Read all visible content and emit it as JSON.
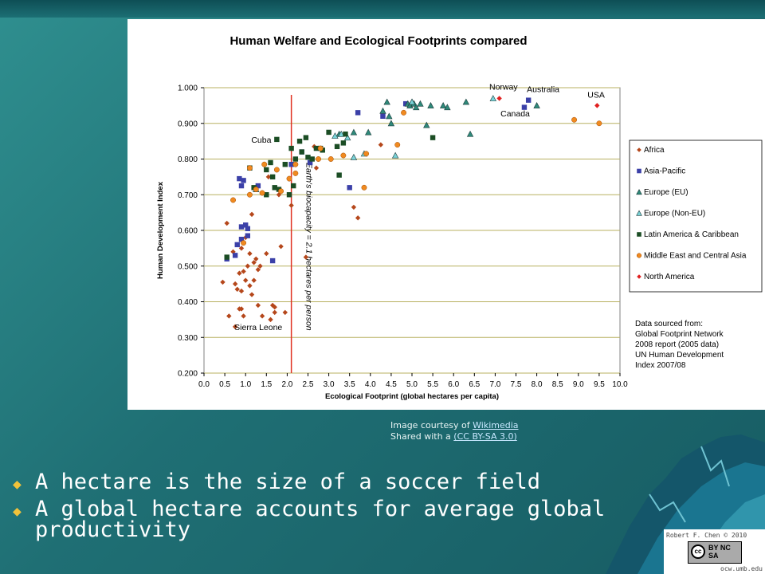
{
  "slide": {
    "bullets": [
      "A hectare is the size of a soccer field",
      "A global hectare accounts for average global productivity"
    ],
    "credit": {
      "prefix1": "Image courtesy of ",
      "link1": "Wikimedia",
      "prefix2": "Shared with a ",
      "link2": "(CC BY-SA 3.0)"
    },
    "license": {
      "author": "Robert F. Chen © 2010",
      "site": "ocw.umb.edu",
      "badge_cc": "cc",
      "badge_terms": "BY NC SA"
    },
    "colors": {
      "background": "#1f6f74",
      "bullet_marker": "#f2c23a",
      "bullet_text": "#ffffff"
    }
  },
  "chart_data": {
    "type": "scatter",
    "title": "Human Welfare and Ecological Footprints compared",
    "xlabel": "Ecological Footprint (global hectares per capita)",
    "ylabel": "Human Development Index",
    "xlim": [
      0,
      10
    ],
    "ylim": [
      0.2,
      1.0
    ],
    "xticks": [
      "0.0",
      "0.5",
      "1.0",
      "1.5",
      "2.0",
      "2.5",
      "3.0",
      "3.5",
      "4.0",
      "4.5",
      "5.0",
      "5.5",
      "6.0",
      "6.5",
      "7.0",
      "7.5",
      "8.0",
      "8.5",
      "9.0",
      "9.5",
      "10.0"
    ],
    "yticks": [
      "0.200",
      "0.300",
      "0.400",
      "0.500",
      "0.600",
      "0.700",
      "0.800",
      "0.900",
      "1.000"
    ],
    "grid": "horizontal",
    "plot_background": "#ffffff",
    "grid_color": "#b8b060",
    "legend_position": "right",
    "reference_line": {
      "x": 2.1,
      "label": "Earth's biocapacity = 2.1 hectares per person",
      "color": "#e03020"
    },
    "annotations": [
      {
        "text": "Norway",
        "x": 7.05,
        "y": 0.97
      },
      {
        "text": "Canada",
        "x": 7.55,
        "y": 0.94
      },
      {
        "text": "Australia",
        "x": 7.8,
        "y": 0.965
      },
      {
        "text": "USA",
        "x": 9.45,
        "y": 0.95
      },
      {
        "text": "Cuba",
        "x": 1.75,
        "y": 0.855
      },
      {
        "text": "Sierra Leone",
        "x": 0.75,
        "y": 0.33
      }
    ],
    "note": "Data sourced from: Global Footprint Network 2008 report (2005 data) UN Human Development Index 2007/08",
    "series": [
      {
        "name": "Africa",
        "marker": "diamond",
        "color": "#b5471b",
        "points": [
          [
            0.45,
            0.455
          ],
          [
            0.55,
            0.62
          ],
          [
            0.6,
            0.36
          ],
          [
            0.7,
            0.54
          ],
          [
            0.75,
            0.45
          ],
          [
            0.75,
            0.33
          ],
          [
            0.8,
            0.435
          ],
          [
            0.85,
            0.48
          ],
          [
            0.85,
            0.38
          ],
          [
            0.9,
            0.38
          ],
          [
            0.9,
            0.43
          ],
          [
            0.9,
            0.55
          ],
          [
            0.95,
            0.36
          ],
          [
            0.95,
            0.485
          ],
          [
            1.0,
            0.58
          ],
          [
            1.0,
            0.46
          ],
          [
            1.05,
            0.5
          ],
          [
            1.1,
            0.445
          ],
          [
            1.1,
            0.535
          ],
          [
            1.15,
            0.645
          ],
          [
            1.15,
            0.42
          ],
          [
            1.2,
            0.46
          ],
          [
            1.2,
            0.51
          ],
          [
            1.25,
            0.52
          ],
          [
            1.3,
            0.49
          ],
          [
            1.3,
            0.39
          ],
          [
            1.35,
            0.5
          ],
          [
            1.4,
            0.36
          ],
          [
            1.5,
            0.535
          ],
          [
            1.55,
            0.75
          ],
          [
            1.6,
            0.35
          ],
          [
            1.65,
            0.39
          ],
          [
            1.7,
            0.385
          ],
          [
            1.7,
            0.37
          ],
          [
            1.75,
            0.77
          ],
          [
            1.8,
            0.7
          ],
          [
            1.85,
            0.555
          ],
          [
            1.95,
            0.37
          ],
          [
            2.1,
            0.67
          ],
          [
            2.45,
            0.525
          ],
          [
            2.65,
            0.835
          ],
          [
            2.7,
            0.775
          ],
          [
            3.6,
            0.665
          ],
          [
            3.7,
            0.635
          ],
          [
            4.25,
            0.84
          ]
        ]
      },
      {
        "name": "Asia-Pacific",
        "marker": "square",
        "color": "#3b40a8",
        "points": [
          [
            0.55,
            0.52
          ],
          [
            0.75,
            0.53
          ],
          [
            0.8,
            0.56
          ],
          [
            0.85,
            0.745
          ],
          [
            0.9,
            0.61
          ],
          [
            0.9,
            0.575
          ],
          [
            0.9,
            0.725
          ],
          [
            0.95,
            0.74
          ],
          [
            1.0,
            0.615
          ],
          [
            1.05,
            0.605
          ],
          [
            1.05,
            0.585
          ],
          [
            1.3,
            0.725
          ],
          [
            1.65,
            0.515
          ],
          [
            2.1,
            0.785
          ],
          [
            2.35,
            0.82
          ],
          [
            2.55,
            0.79
          ],
          [
            3.5,
            0.72
          ],
          [
            3.7,
            0.93
          ],
          [
            4.3,
            0.92
          ],
          [
            4.85,
            0.955
          ],
          [
            7.7,
            0.945
          ],
          [
            7.8,
            0.965
          ]
        ]
      },
      {
        "name": "Europe (EU)",
        "marker": "triangle",
        "color": "#2f8a7a",
        "points": [
          [
            3.25,
            0.87
          ],
          [
            3.6,
            0.875
          ],
          [
            3.95,
            0.875
          ],
          [
            4.3,
            0.935
          ],
          [
            4.4,
            0.96
          ],
          [
            4.45,
            0.92
          ],
          [
            4.5,
            0.9
          ],
          [
            4.9,
            0.955
          ],
          [
            4.95,
            0.95
          ],
          [
            5.0,
            0.96
          ],
          [
            5.05,
            0.955
          ],
          [
            5.1,
            0.945
          ],
          [
            5.2,
            0.955
          ],
          [
            5.35,
            0.895
          ],
          [
            5.45,
            0.95
          ],
          [
            5.75,
            0.95
          ],
          [
            5.85,
            0.945
          ],
          [
            6.3,
            0.96
          ],
          [
            6.4,
            0.87
          ],
          [
            8.0,
            0.95
          ]
        ]
      },
      {
        "name": "Europe (Non-EU)",
        "marker": "triangle",
        "color": "#7ad3d8",
        "points": [
          [
            1.25,
            0.715
          ],
          [
            3.15,
            0.865
          ],
          [
            3.3,
            0.87
          ],
          [
            3.45,
            0.86
          ],
          [
            3.6,
            0.805
          ],
          [
            3.85,
            0.815
          ],
          [
            4.6,
            0.81
          ],
          [
            5.0,
            0.96
          ],
          [
            6.95,
            0.97
          ]
        ]
      },
      {
        "name": "Latin America & Caribbean",
        "marker": "square",
        "color": "#1b4d24",
        "points": [
          [
            0.55,
            0.525
          ],
          [
            1.1,
            0.775
          ],
          [
            1.2,
            0.72
          ],
          [
            1.5,
            0.77
          ],
          [
            1.5,
            0.7
          ],
          [
            1.6,
            0.79
          ],
          [
            1.65,
            0.75
          ],
          [
            1.7,
            0.72
          ],
          [
            1.75,
            0.855
          ],
          [
            1.8,
            0.715
          ],
          [
            1.95,
            0.785
          ],
          [
            2.05,
            0.7
          ],
          [
            2.1,
            0.83
          ],
          [
            2.15,
            0.725
          ],
          [
            2.2,
            0.8
          ],
          [
            2.3,
            0.85
          ],
          [
            2.35,
            0.82
          ],
          [
            2.45,
            0.86
          ],
          [
            2.5,
            0.805
          ],
          [
            2.6,
            0.8
          ],
          [
            2.7,
            0.83
          ],
          [
            2.8,
            0.83
          ],
          [
            2.85,
            0.825
          ],
          [
            3.0,
            0.875
          ],
          [
            3.2,
            0.835
          ],
          [
            3.25,
            0.755
          ],
          [
            3.35,
            0.845
          ],
          [
            3.4,
            0.87
          ],
          [
            5.5,
            0.86
          ]
        ]
      },
      {
        "name": "Middle East and Central Asia",
        "marker": "circle",
        "color": "#f08a20",
        "points": [
          [
            0.7,
            0.685
          ],
          [
            0.95,
            0.565
          ],
          [
            1.1,
            0.775
          ],
          [
            1.1,
            0.7
          ],
          [
            1.25,
            0.715
          ],
          [
            1.4,
            0.705
          ],
          [
            1.45,
            0.785
          ],
          [
            1.75,
            0.77
          ],
          [
            1.85,
            0.71
          ],
          [
            2.05,
            0.745
          ],
          [
            2.2,
            0.785
          ],
          [
            2.2,
            0.76
          ],
          [
            2.75,
            0.8
          ],
          [
            2.8,
            0.83
          ],
          [
            3.05,
            0.8
          ],
          [
            3.35,
            0.81
          ],
          [
            3.85,
            0.72
          ],
          [
            3.9,
            0.815
          ],
          [
            4.65,
            0.84
          ],
          [
            4.8,
            0.93
          ],
          [
            8.9,
            0.91
          ],
          [
            9.5,
            0.9
          ]
        ]
      },
      {
        "name": "North America",
        "marker": "diamond",
        "color": "#e02020",
        "points": [
          [
            7.1,
            0.97
          ],
          [
            9.45,
            0.95
          ]
        ]
      }
    ]
  }
}
